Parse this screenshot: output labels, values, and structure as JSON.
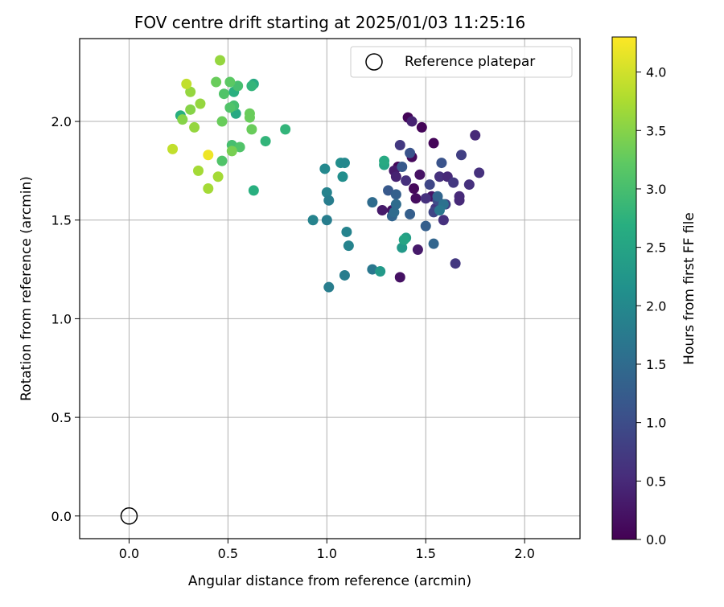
{
  "chart_data": {
    "type": "scatter",
    "title": "FOV centre drift starting at 2025/01/03 11:25:16",
    "xlabel": "Angular distance from reference (arcmin)",
    "ylabel": "Rotation from reference (arcmin)",
    "xlim": [
      -0.25,
      2.28
    ],
    "ylim": [
      -0.115,
      2.42
    ],
    "xticks": [
      0.0,
      0.5,
      1.0,
      1.5,
      2.0
    ],
    "yticks": [
      0.0,
      0.5,
      1.0,
      1.5,
      2.0
    ],
    "grid": true,
    "legend": {
      "position": "top-right",
      "entries": [
        "Reference platepar"
      ]
    },
    "reference_point": {
      "label": "Reference platepar",
      "x": 0.0,
      "y": 0.0
    },
    "colorbar": {
      "label": "Hours from first FF file",
      "min": 0.0,
      "max": 4.3,
      "ticks": [
        0.0,
        0.5,
        1.0,
        1.5,
        2.0,
        2.5,
        3.0,
        3.5,
        4.0
      ],
      "colormap": "viridis"
    },
    "points": [
      {
        "x": 1.36,
        "y": 1.77,
        "c": 0.05
      },
      {
        "x": 1.41,
        "y": 2.02,
        "c": 0.05
      },
      {
        "x": 1.48,
        "y": 1.97,
        "c": 0.05
      },
      {
        "x": 1.54,
        "y": 1.89,
        "c": 0.05
      },
      {
        "x": 1.43,
        "y": 1.82,
        "c": 0.1
      },
      {
        "x": 1.44,
        "y": 1.66,
        "c": 0.1
      },
      {
        "x": 1.47,
        "y": 1.73,
        "c": 0.2
      },
      {
        "x": 1.45,
        "y": 1.61,
        "c": 0.15
      },
      {
        "x": 1.53,
        "y": 1.62,
        "c": 0.25
      },
      {
        "x": 1.33,
        "y": 1.55,
        "c": 0.2
      },
      {
        "x": 1.28,
        "y": 1.55,
        "c": 0.3
      },
      {
        "x": 1.37,
        "y": 1.21,
        "c": 0.2
      },
      {
        "x": 1.46,
        "y": 1.35,
        "c": 0.3
      },
      {
        "x": 1.34,
        "y": 1.75,
        "c": 0.3
      },
      {
        "x": 1.35,
        "y": 1.72,
        "c": 0.4
      },
      {
        "x": 1.43,
        "y": 2.0,
        "c": 0.4
      },
      {
        "x": 1.37,
        "y": 1.88,
        "c": 0.7
      },
      {
        "x": 1.4,
        "y": 1.7,
        "c": 0.6
      },
      {
        "x": 1.5,
        "y": 1.61,
        "c": 0.6
      },
      {
        "x": 1.55,
        "y": 1.56,
        "c": 0.7
      },
      {
        "x": 1.59,
        "y": 1.5,
        "c": 0.6
      },
      {
        "x": 1.57,
        "y": 1.72,
        "c": 0.6
      },
      {
        "x": 1.61,
        "y": 1.72,
        "c": 0.5
      },
      {
        "x": 1.64,
        "y": 1.69,
        "c": 0.7
      },
      {
        "x": 1.67,
        "y": 1.62,
        "c": 0.5
      },
      {
        "x": 1.67,
        "y": 1.6,
        "c": 0.5
      },
      {
        "x": 1.72,
        "y": 1.68,
        "c": 0.6
      },
      {
        "x": 1.75,
        "y": 1.93,
        "c": 0.5
      },
      {
        "x": 1.77,
        "y": 1.74,
        "c": 0.6
      },
      {
        "x": 1.65,
        "y": 1.28,
        "c": 0.7
      },
      {
        "x": 1.68,
        "y": 1.83,
        "c": 0.8
      },
      {
        "x": 1.6,
        "y": 1.58,
        "c": 0.8
      },
      {
        "x": 1.52,
        "y": 1.68,
        "c": 0.9
      },
      {
        "x": 1.54,
        "y": 1.54,
        "c": 0.9
      },
      {
        "x": 1.56,
        "y": 1.6,
        "c": 1.0
      },
      {
        "x": 1.58,
        "y": 1.79,
        "c": 1.1
      },
      {
        "x": 1.42,
        "y": 1.84,
        "c": 1.1
      },
      {
        "x": 1.38,
        "y": 1.77,
        "c": 1.2
      },
      {
        "x": 1.31,
        "y": 1.65,
        "c": 1.2
      },
      {
        "x": 1.35,
        "y": 1.63,
        "c": 1.3
      },
      {
        "x": 1.42,
        "y": 1.53,
        "c": 1.3
      },
      {
        "x": 1.5,
        "y": 1.47,
        "c": 1.3
      },
      {
        "x": 1.54,
        "y": 1.38,
        "c": 1.4
      },
      {
        "x": 1.56,
        "y": 1.62,
        "c": 1.4
      },
      {
        "x": 1.33,
        "y": 1.52,
        "c": 1.4
      },
      {
        "x": 1.34,
        "y": 1.54,
        "c": 1.5
      },
      {
        "x": 1.35,
        "y": 1.58,
        "c": 1.5
      },
      {
        "x": 1.23,
        "y": 1.59,
        "c": 1.5
      },
      {
        "x": 1.59,
        "y": 1.58,
        "c": 1.6
      },
      {
        "x": 1.57,
        "y": 1.55,
        "c": 1.7
      },
      {
        "x": 1.23,
        "y": 1.25,
        "c": 1.7
      },
      {
        "x": 1.09,
        "y": 1.22,
        "c": 1.8
      },
      {
        "x": 1.01,
        "y": 1.16,
        "c": 1.8
      },
      {
        "x": 1.11,
        "y": 1.37,
        "c": 1.9
      },
      {
        "x": 1.1,
        "y": 1.44,
        "c": 1.9
      },
      {
        "x": 1.0,
        "y": 1.5,
        "c": 1.8
      },
      {
        "x": 1.0,
        "y": 1.64,
        "c": 1.9
      },
      {
        "x": 1.01,
        "y": 1.6,
        "c": 1.8
      },
      {
        "x": 0.93,
        "y": 1.5,
        "c": 1.9
      },
      {
        "x": 0.99,
        "y": 1.76,
        "c": 2.0
      },
      {
        "x": 1.07,
        "y": 1.79,
        "c": 2.1
      },
      {
        "x": 1.08,
        "y": 1.72,
        "c": 2.1
      },
      {
        "x": 1.09,
        "y": 1.79,
        "c": 2.0
      },
      {
        "x": 1.27,
        "y": 1.24,
        "c": 2.3
      },
      {
        "x": 1.38,
        "y": 1.36,
        "c": 2.3
      },
      {
        "x": 1.4,
        "y": 1.41,
        "c": 2.4
      },
      {
        "x": 1.39,
        "y": 1.4,
        "c": 2.5
      },
      {
        "x": 1.29,
        "y": 1.78,
        "c": 2.5
      },
      {
        "x": 1.29,
        "y": 1.8,
        "c": 2.6
      },
      {
        "x": 0.79,
        "y": 1.96,
        "c": 2.8
      },
      {
        "x": 0.69,
        "y": 1.9,
        "c": 2.8
      },
      {
        "x": 0.63,
        "y": 1.65,
        "c": 2.7
      },
      {
        "x": 0.54,
        "y": 2.04,
        "c": 2.6
      },
      {
        "x": 0.26,
        "y": 2.03,
        "c": 2.7
      },
      {
        "x": 0.53,
        "y": 2.15,
        "c": 2.7
      },
      {
        "x": 0.63,
        "y": 2.19,
        "c": 2.6
      },
      {
        "x": 0.62,
        "y": 2.18,
        "c": 2.8
      },
      {
        "x": 0.55,
        "y": 2.18,
        "c": 3.0
      },
      {
        "x": 0.53,
        "y": 2.08,
        "c": 3.0
      },
      {
        "x": 0.51,
        "y": 2.07,
        "c": 3.1
      },
      {
        "x": 0.52,
        "y": 1.88,
        "c": 3.0
      },
      {
        "x": 0.56,
        "y": 1.87,
        "c": 3.1
      },
      {
        "x": 0.47,
        "y": 1.8,
        "c": 3.1
      },
      {
        "x": 0.48,
        "y": 2.14,
        "c": 3.1
      },
      {
        "x": 0.51,
        "y": 2.2,
        "c": 3.2
      },
      {
        "x": 0.44,
        "y": 2.2,
        "c": 3.3
      },
      {
        "x": 0.47,
        "y": 2.0,
        "c": 3.3
      },
      {
        "x": 0.61,
        "y": 2.04,
        "c": 3.3
      },
      {
        "x": 0.61,
        "y": 2.02,
        "c": 3.3
      },
      {
        "x": 0.62,
        "y": 1.96,
        "c": 3.3
      },
      {
        "x": 0.52,
        "y": 1.85,
        "c": 3.4
      },
      {
        "x": 0.27,
        "y": 2.01,
        "c": 3.5
      },
      {
        "x": 0.31,
        "y": 2.06,
        "c": 3.5
      },
      {
        "x": 0.31,
        "y": 2.15,
        "c": 3.6
      },
      {
        "x": 0.36,
        "y": 2.09,
        "c": 3.6
      },
      {
        "x": 0.33,
        "y": 1.97,
        "c": 3.6
      },
      {
        "x": 0.46,
        "y": 2.31,
        "c": 3.6
      },
      {
        "x": 0.45,
        "y": 1.72,
        "c": 3.7
      },
      {
        "x": 0.35,
        "y": 1.75,
        "c": 3.7
      },
      {
        "x": 0.4,
        "y": 1.66,
        "c": 3.7
      },
      {
        "x": 0.29,
        "y": 2.19,
        "c": 3.9
      },
      {
        "x": 0.22,
        "y": 1.86,
        "c": 3.9
      },
      {
        "x": 0.4,
        "y": 1.83,
        "c": 4.2
      }
    ]
  }
}
